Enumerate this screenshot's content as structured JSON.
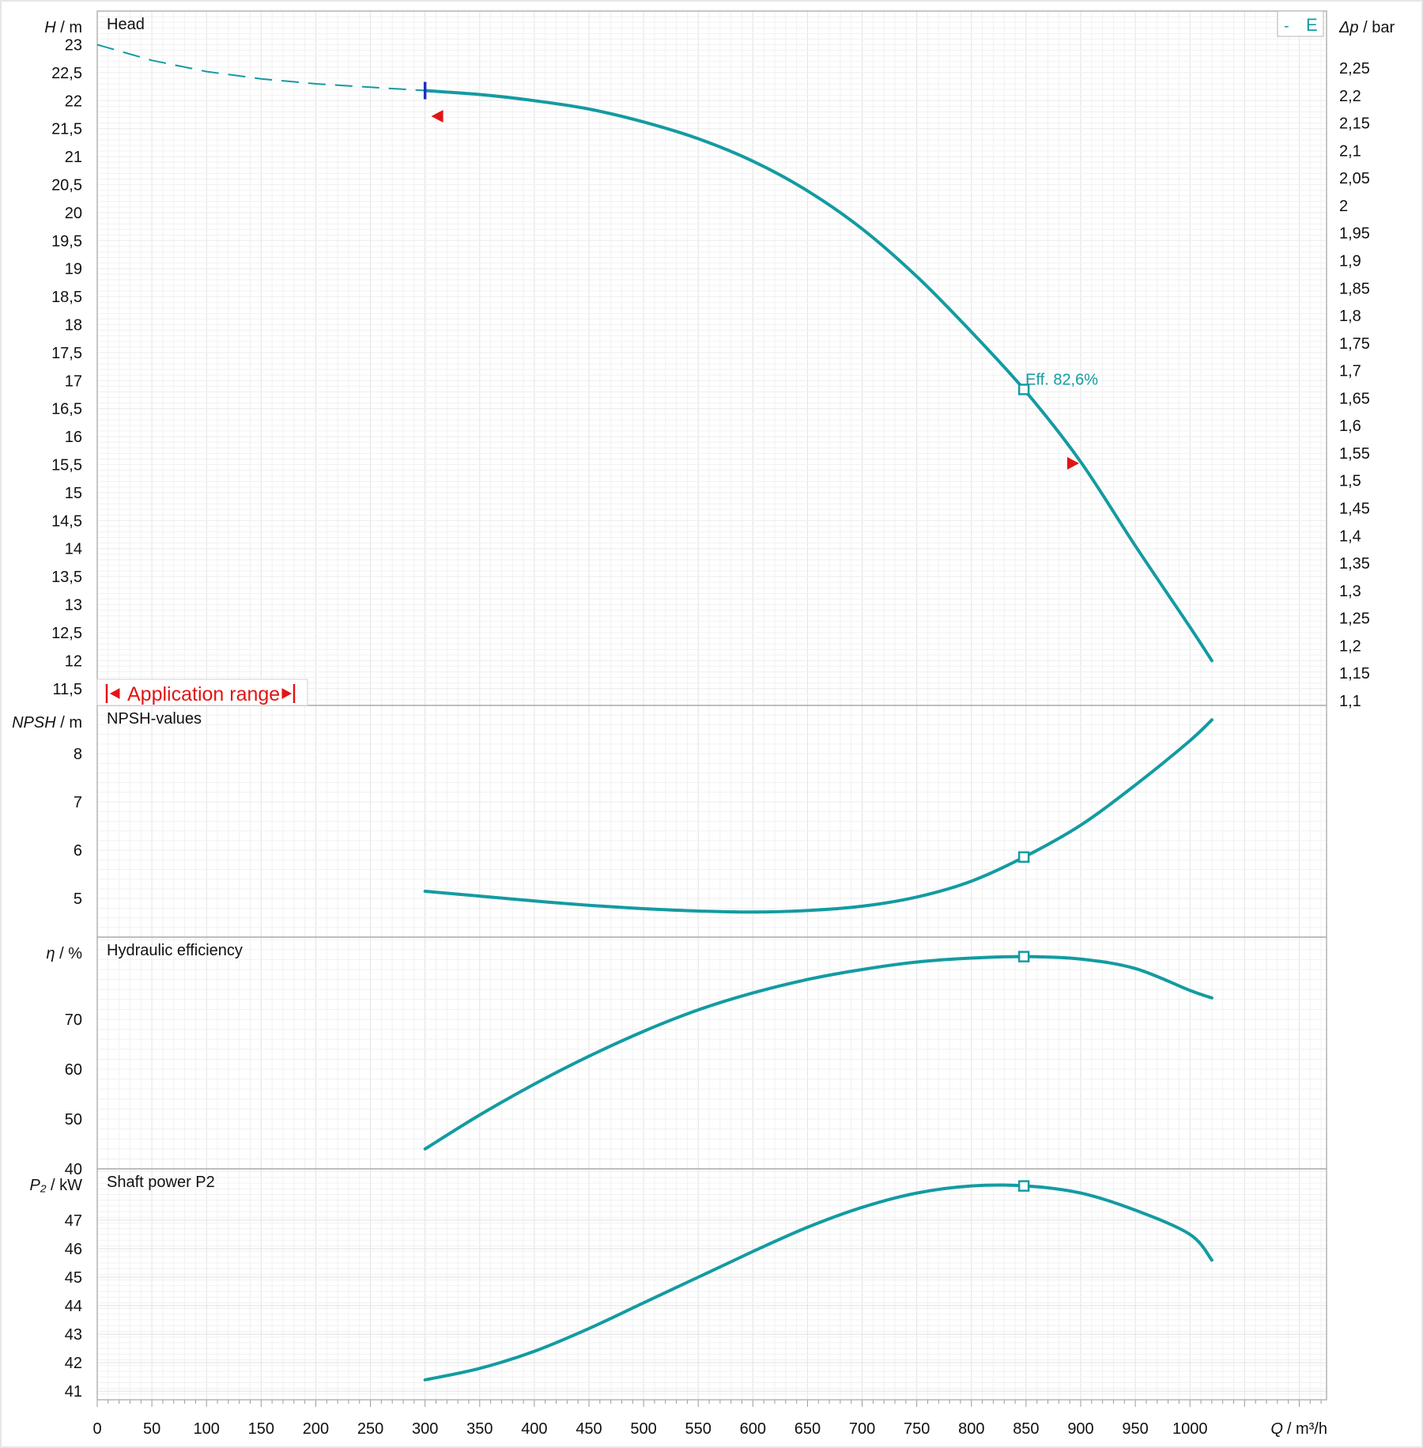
{
  "colors": {
    "curve": "#139ba1",
    "application_range": "#e31414",
    "start_marker": "#1d2fc4",
    "frame": "#b4b4b4",
    "grid_major": "#e2e2e2",
    "grid_minor": "#f1f1f1",
    "text": "#111111"
  },
  "x_axis": {
    "label_q": "Q",
    "label_unit": "/ m³/h",
    "min": 0,
    "max": 1125,
    "ticks": [
      0,
      50,
      100,
      150,
      200,
      250,
      300,
      350,
      400,
      450,
      500,
      550,
      600,
      650,
      700,
      750,
      800,
      850,
      900,
      950,
      1000
    ]
  },
  "legend": {
    "dash": "-",
    "label": "E"
  },
  "application_range": {
    "label": "Application range",
    "q_min": 305,
    "q_max": 892
  },
  "operating_point": {
    "q": 848,
    "annotation": "Eff.  82,6%"
  },
  "chart_data": [
    {
      "type": "line",
      "name": "head",
      "title": "Head",
      "ylabel_sym": "H",
      "ylabel_unit": " / m",
      "ylim": [
        11.2,
        23.6
      ],
      "ticks": [
        23,
        22.5,
        22,
        21.5,
        21,
        20.5,
        20,
        19.5,
        19,
        18.5,
        18,
        17.5,
        17,
        16.5,
        16,
        15.5,
        15,
        14.5,
        14,
        13.5,
        13,
        12.5,
        12,
        11.5
      ],
      "tick_labels": [
        "23",
        "22,5",
        "22",
        "21,5",
        "21",
        "20,5",
        "20",
        "19,5",
        "19",
        "18,5",
        "18",
        "17,5",
        "17",
        "16,5",
        "16",
        "15,5",
        "15",
        "14,5",
        "14",
        "13,5",
        "13",
        "12,5",
        "12",
        "11,5"
      ],
      "right_axis": {
        "label_sym": "Δp",
        "label_unit": " / bar",
        "ticks": [
          2.25,
          2.2,
          2.15,
          2.1,
          2.05,
          2,
          1.95,
          1.9,
          1.85,
          1.8,
          1.75,
          1.7,
          1.65,
          1.6,
          1.55,
          1.5,
          1.45,
          1.4,
          1.35,
          1.3,
          1.25,
          1.2,
          1.15,
          1.1
        ],
        "tick_labels": [
          "2,25",
          "2,2",
          "2,15",
          "2,1",
          "2,05",
          "2",
          "1,95",
          "1,9",
          "1,85",
          "1,8",
          "1,75",
          "1,7",
          "1,65",
          "1,6",
          "1,55",
          "1,5",
          "1,45",
          "1,4",
          "1,35",
          "1,3",
          "1,25",
          "1,2",
          "1,15",
          "1,1"
        ]
      },
      "dashed": {
        "x": [
          0,
          50,
          100,
          150,
          200,
          250,
          300
        ],
        "y": [
          23.0,
          22.72,
          22.52,
          22.39,
          22.3,
          22.24,
          22.18
        ]
      },
      "x": [
        300,
        350,
        400,
        450,
        500,
        550,
        600,
        650,
        700,
        750,
        800,
        850,
        900,
        950,
        1000,
        1020
      ],
      "y": [
        22.18,
        22.11,
        22.0,
        21.85,
        21.62,
        21.32,
        20.92,
        20.39,
        19.71,
        18.86,
        17.87,
        16.8,
        15.55,
        14.05,
        12.6,
        12.0
      ]
    },
    {
      "type": "line",
      "name": "npsh",
      "title": "NPSH-values",
      "ylabel_sym": "NPSH",
      "ylabel_unit": "  / m",
      "ylim": [
        4.2,
        9.0
      ],
      "ticks": [
        8,
        7,
        6,
        5
      ],
      "tick_labels": [
        "8",
        "7",
        "6",
        "5"
      ],
      "x": [
        300,
        350,
        400,
        450,
        500,
        550,
        600,
        650,
        700,
        750,
        800,
        850,
        900,
        950,
        1000,
        1020
      ],
      "y": [
        5.15,
        5.05,
        4.95,
        4.86,
        4.79,
        4.74,
        4.72,
        4.75,
        4.84,
        5.03,
        5.36,
        5.88,
        6.52,
        7.35,
        8.27,
        8.7
      ]
    },
    {
      "type": "line",
      "name": "efficiency",
      "title": "Hydraulic efficiency",
      "ylabel_sym": "η",
      "ylabel_unit": " / %",
      "ylim": [
        40,
        86.5
      ],
      "ticks": [
        70,
        60,
        50,
        40
      ],
      "tick_labels": [
        "70",
        "60",
        "50",
        "40"
      ],
      "x": [
        300,
        350,
        400,
        450,
        500,
        550,
        600,
        650,
        700,
        750,
        800,
        850,
        900,
        950,
        1000,
        1020
      ],
      "y": [
        44.0,
        50.8,
        57.0,
        62.6,
        67.6,
        71.9,
        75.3,
        78.0,
        80.0,
        81.5,
        82.3,
        82.6,
        82.1,
        80.2,
        75.8,
        74.3
      ]
    },
    {
      "type": "line",
      "name": "shaft-power",
      "title": "Shaft power P2",
      "ylabel_sym": "P₂",
      "ylabel_unit": " / kW",
      "ylim": [
        40.7,
        48.8
      ],
      "ticks": [
        47,
        46,
        45,
        44,
        43,
        42,
        41
      ],
      "tick_labels": [
        "47",
        "46",
        "45",
        "44",
        "43",
        "42",
        "41"
      ],
      "x": [
        300,
        350,
        400,
        450,
        500,
        550,
        600,
        650,
        700,
        750,
        800,
        850,
        900,
        950,
        1000,
        1020
      ],
      "y": [
        41.4,
        41.8,
        42.4,
        43.2,
        44.1,
        45.0,
        45.9,
        46.75,
        47.45,
        47.95,
        48.2,
        48.2,
        47.95,
        47.35,
        46.5,
        45.6
      ]
    }
  ]
}
